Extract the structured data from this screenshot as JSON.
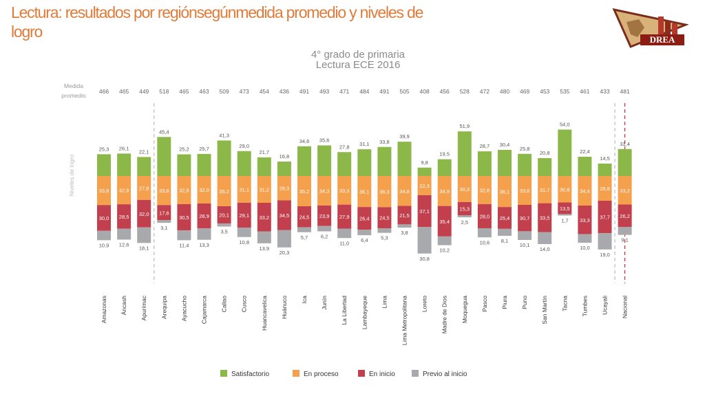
{
  "page": {
    "title": "Lectura: resultados por regiónsegúnmedida promedio  y niveles de  logro",
    "logo_text": "DREA"
  },
  "colors": {
    "satisfactorio": "#8cb84a",
    "en_proceso": "#f5a04d",
    "en_inicio": "#c2404d",
    "previo": "#a7a9ac",
    "dashed_gray": "#bbbbbb",
    "dashed_red": "#e02424"
  },
  "chart_data": {
    "type": "bar",
    "subtitle_line1": "4° grado de primaria",
    "subtitle_line2": "Lectura ECE 2016",
    "row_label_line1": "Medida",
    "row_label_line2": "promedio",
    "ylabel": "Niveles de logro",
    "categories": [
      "Amazonas",
      "Áncash",
      "Apurímac",
      "Arequipa",
      "Ayacucho",
      "Cajamarca",
      "Callao",
      "Cusco",
      "Huancavelica",
      "Huánuco",
      "Ica",
      "Junín",
      "La Libertad",
      "Lambayeque",
      "Lima",
      "Lima Metropolitana",
      "Loreto",
      "Madre de Dios",
      "Moquegua",
      "Pasco",
      "Piura",
      "Puno",
      "San Martín",
      "Tacna",
      "Tumbes",
      "Ucayali",
      "Nacional"
    ],
    "medida_promedio": [
      466,
      465,
      449,
      518,
      465,
      463,
      509,
      473,
      454,
      436,
      491,
      493,
      471,
      484,
      491,
      505,
      408,
      456,
      528,
      472,
      480,
      469,
      453,
      535,
      461,
      433,
      481
    ],
    "series": [
      {
        "key": "satisfactorio",
        "name": "Satisfactorio",
        "values": [
          25.3,
          26.1,
          22.1,
          45.4,
          25.2,
          25.7,
          41.3,
          29.0,
          21.7,
          16.8,
          34.6,
          35.6,
          27.8,
          31.1,
          33.8,
          39.9,
          9.8,
          19.5,
          51.9,
          28.7,
          30.4,
          25.8,
          20.8,
          54.0,
          22.4,
          14.5,
          31.4
        ]
      },
      {
        "key": "en_proceso",
        "name": "En proceso",
        "values": [
          33.8,
          32.9,
          27.8,
          33.8,
          32.8,
          32.0,
          35.2,
          31.1,
          31.2,
          28.3,
          35.2,
          34.3,
          33.3,
          36.1,
          36.3,
          34.8,
          22.3,
          34.9,
          30.3,
          32.8,
          36.1,
          33.6,
          31.7,
          30.8,
          34.4,
          28.8,
          33.2
        ]
      },
      {
        "key": "en_inicio",
        "name": "En inicio",
        "values": [
          30.0,
          28.5,
          32.0,
          17.6,
          30.5,
          28.9,
          20.1,
          29.1,
          33.2,
          34.5,
          24.5,
          23.9,
          27.9,
          26.4,
          24.5,
          21.5,
          37.1,
          35.4,
          15.3,
          28.0,
          25.4,
          30.7,
          33.5,
          13.5,
          33.3,
          37.7,
          26.2
        ]
      },
      {
        "key": "previo",
        "name": "Previo al inicio",
        "values": [
          10.9,
          12.6,
          18.1,
          3.1,
          11.4,
          13.3,
          3.5,
          10.8,
          13.9,
          20.3,
          5.7,
          6.2,
          11.0,
          6.4,
          5.3,
          3.8,
          30.8,
          10.2,
          2.5,
          10.6,
          8.1,
          10.1,
          14.0,
          1.7,
          10.0,
          19.0,
          9.1
        ]
      }
    ],
    "legend": [
      "Satisfactorio",
      "En proceso",
      "En inicio",
      "Previo al inicio"
    ],
    "legend_position": "bottom"
  }
}
